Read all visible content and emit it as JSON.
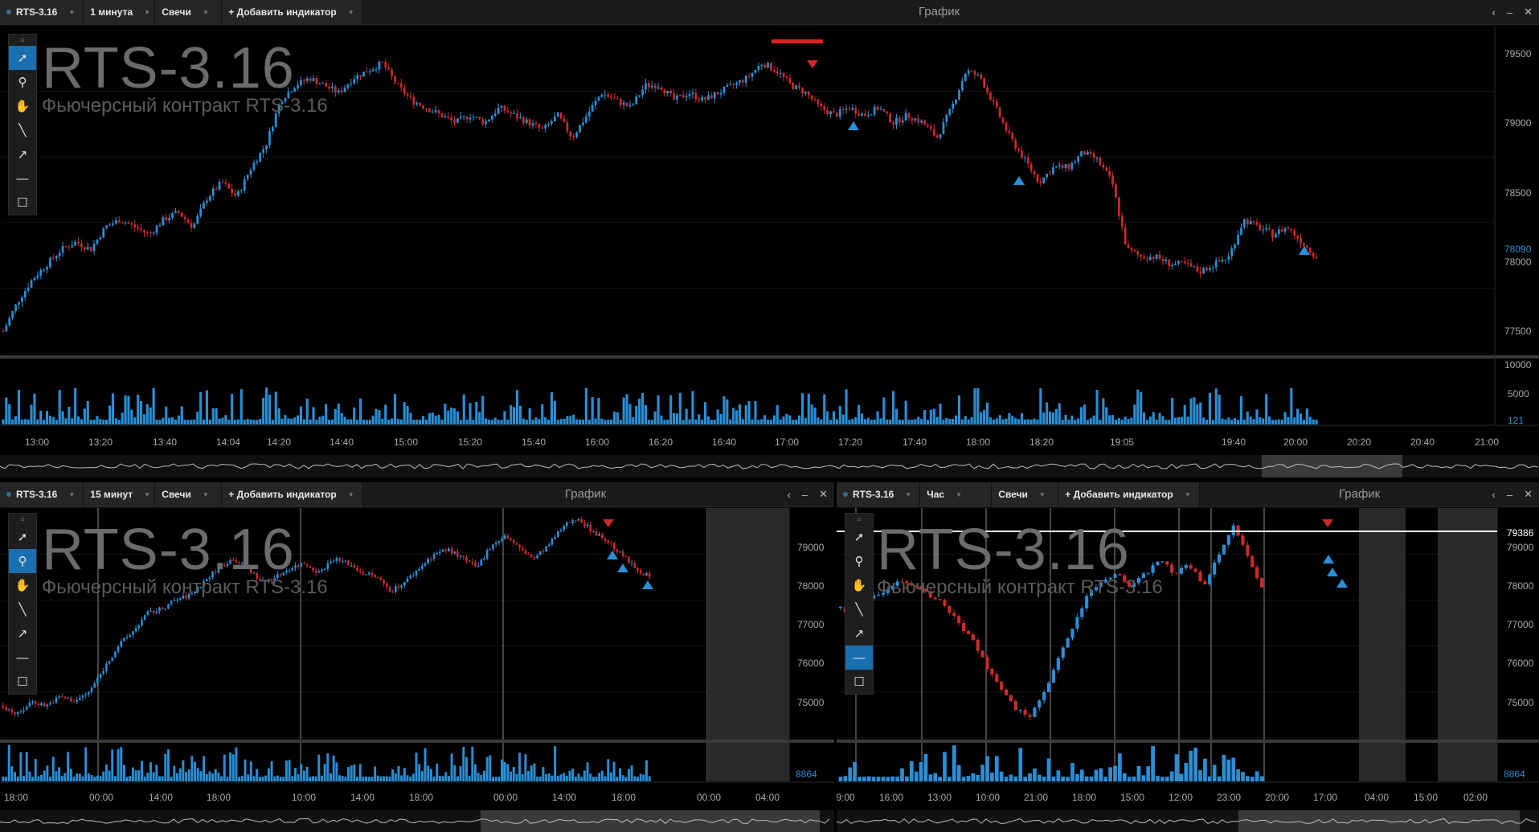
{
  "colors": {
    "up": "#2a8fd6",
    "down": "#cc2a2a",
    "bg": "#000000",
    "grid": "#1a1a1a",
    "accent": "#1a6fb0"
  },
  "top": {
    "symbol": "RTS-3.16",
    "interval": "1 минута",
    "chart_type": "Свечи",
    "add_indicator": "+ Добавить индикатор",
    "window_title": "График",
    "big_title": "RTS-3.16",
    "subtitle": "Фьючерсный контракт RTS-3.16",
    "price_ticks": [
      "79500",
      "79000",
      "78500",
      "78000",
      "77500"
    ],
    "last_price": "78090",
    "volume_ticks": [
      "10000",
      "5000"
    ],
    "volume_last": "121",
    "time_ticks": [
      "13:00",
      "13:20",
      "13:40",
      "14:04",
      "14:20",
      "14:40",
      "15:00",
      "15:20",
      "15:40",
      "16:00",
      "16:20",
      "16:40",
      "17:00",
      "17:20",
      "17:40",
      "18:00",
      "18:20",
      "19:05",
      "19:40",
      "20:00",
      "20:20",
      "20:40",
      "21:00"
    ]
  },
  "bottom_left": {
    "symbol": "RTS-3.16",
    "interval": "15 минут",
    "chart_type": "Свечи",
    "add_indicator": "+ Добавить индикатор",
    "window_title": "График",
    "big_title": "RTS-3.16",
    "subtitle": "Фьючерсный контракт RTS-3.16",
    "price_ticks": [
      "79000",
      "78000",
      "77000",
      "76000",
      "75000"
    ],
    "volume_last": "8864",
    "time_ticks": [
      "18:00",
      "00:00",
      "14:00",
      "18:00",
      "10:00",
      "14:00",
      "18:00",
      "00:00",
      "14:00",
      "18:00",
      "00:00",
      "04:00"
    ]
  },
  "bottom_right": {
    "symbol": "RTS-3.16",
    "interval": "Час",
    "chart_type": "Свечи",
    "add_indicator": "+ Добавить индикатор",
    "window_title": "График",
    "big_title": "RTS-3.16",
    "subtitle": "Фьючерсный контракт RTS-3.16",
    "price_ticks": [
      "79000",
      "78000",
      "77000",
      "76000",
      "75000"
    ],
    "level_price": "79386",
    "volume_last": "8864",
    "time_ticks": [
      "9:00",
      "16:00",
      "13:00",
      "10:00",
      "21:00",
      "18:00",
      "15:00",
      "12:00",
      "23:00",
      "20:00",
      "17:00",
      "04:00",
      "15:00",
      "02:00"
    ]
  },
  "icons": [
    "arrow-pointer-icon",
    "zoom-icon",
    "hand-pan-icon",
    "line-tool-icon",
    "arrow-line-icon",
    "horizontal-line-icon",
    "rectangle-icon",
    "close-icon",
    "minimize-icon",
    "collapse-icon"
  ],
  "chart_data": [
    {
      "type": "candlestick",
      "title": "RTS-3.16",
      "interval": "1 минута",
      "ylim": [
        77450,
        79650
      ],
      "close_series": [
        77600,
        77800,
        77950,
        78050,
        78150,
        78200,
        78150,
        78300,
        78350,
        78300,
        78250,
        78350,
        78400,
        78300,
        78500,
        78600,
        78500,
        78700,
        78850,
        79150,
        79250,
        79300,
        79250,
        79200,
        79300,
        79350,
        79400,
        79250,
        79150,
        79100,
        79050,
        79000,
        79050,
        79000,
        79100,
        79050,
        79000,
        78950,
        79050,
        78900,
        79050,
        79200,
        79150,
        79100,
        79250,
        79250,
        79150,
        79200,
        79150,
        79200,
        79250,
        79300,
        79400,
        79350,
        79250,
        79200,
        79100,
        79050,
        79100,
        79050,
        79100,
        79000,
        79050,
        79000,
        78900,
        79100,
        79350,
        79300,
        79100,
        78900,
        78750,
        78600,
        78700,
        78700,
        78800,
        78750,
        78600,
        78150,
        78100,
        78100,
        78050,
        78050,
        78000,
        78050,
        78100,
        78350,
        78300,
        78250,
        78300,
        78200,
        78100
      ],
      "volume_ticks": [
        10000,
        5000
      ],
      "markers": {
        "sell": [
          [
            17.1,
            79400
          ]
        ],
        "buy": [
          [
            17.2,
            79000
          ],
          [
            18.2,
            78600
          ],
          [
            20.0,
            78090
          ]
        ]
      }
    },
    {
      "type": "candlestick",
      "title": "RTS-3.16",
      "interval": "15 минут",
      "ylim": [
        74500,
        79500
      ],
      "close_series": [
        75200,
        75000,
        75300,
        75200,
        75400,
        75300,
        75500,
        76000,
        76500,
        76800,
        77200,
        77300,
        77500,
        77600,
        77900,
        78200,
        78400,
        78200,
        77900,
        78000,
        78200,
        78300,
        78100,
        78400,
        78300,
        78100,
        78000,
        77700,
        77900,
        78200,
        78500,
        78600,
        78400,
        78200,
        78700,
        78900,
        78600,
        78400,
        78700,
        79100,
        79300,
        79000,
        78800,
        78500,
        78200,
        78000
      ]
    },
    {
      "type": "candlestick",
      "title": "RTS-3.16",
      "interval": "Час",
      "ylim": [
        74500,
        79800
      ],
      "close_series": [
        77500,
        77300,
        77700,
        77900,
        78100,
        78000,
        77800,
        77600,
        77200,
        76800,
        76200,
        75600,
        75200,
        75000,
        75500,
        76300,
        77100,
        77800,
        78100,
        78300,
        78000,
        78300,
        78600,
        78300,
        78500,
        78000,
        78700,
        79386,
        78700,
        78000
      ],
      "levels": [
        79386
      ]
    }
  ]
}
